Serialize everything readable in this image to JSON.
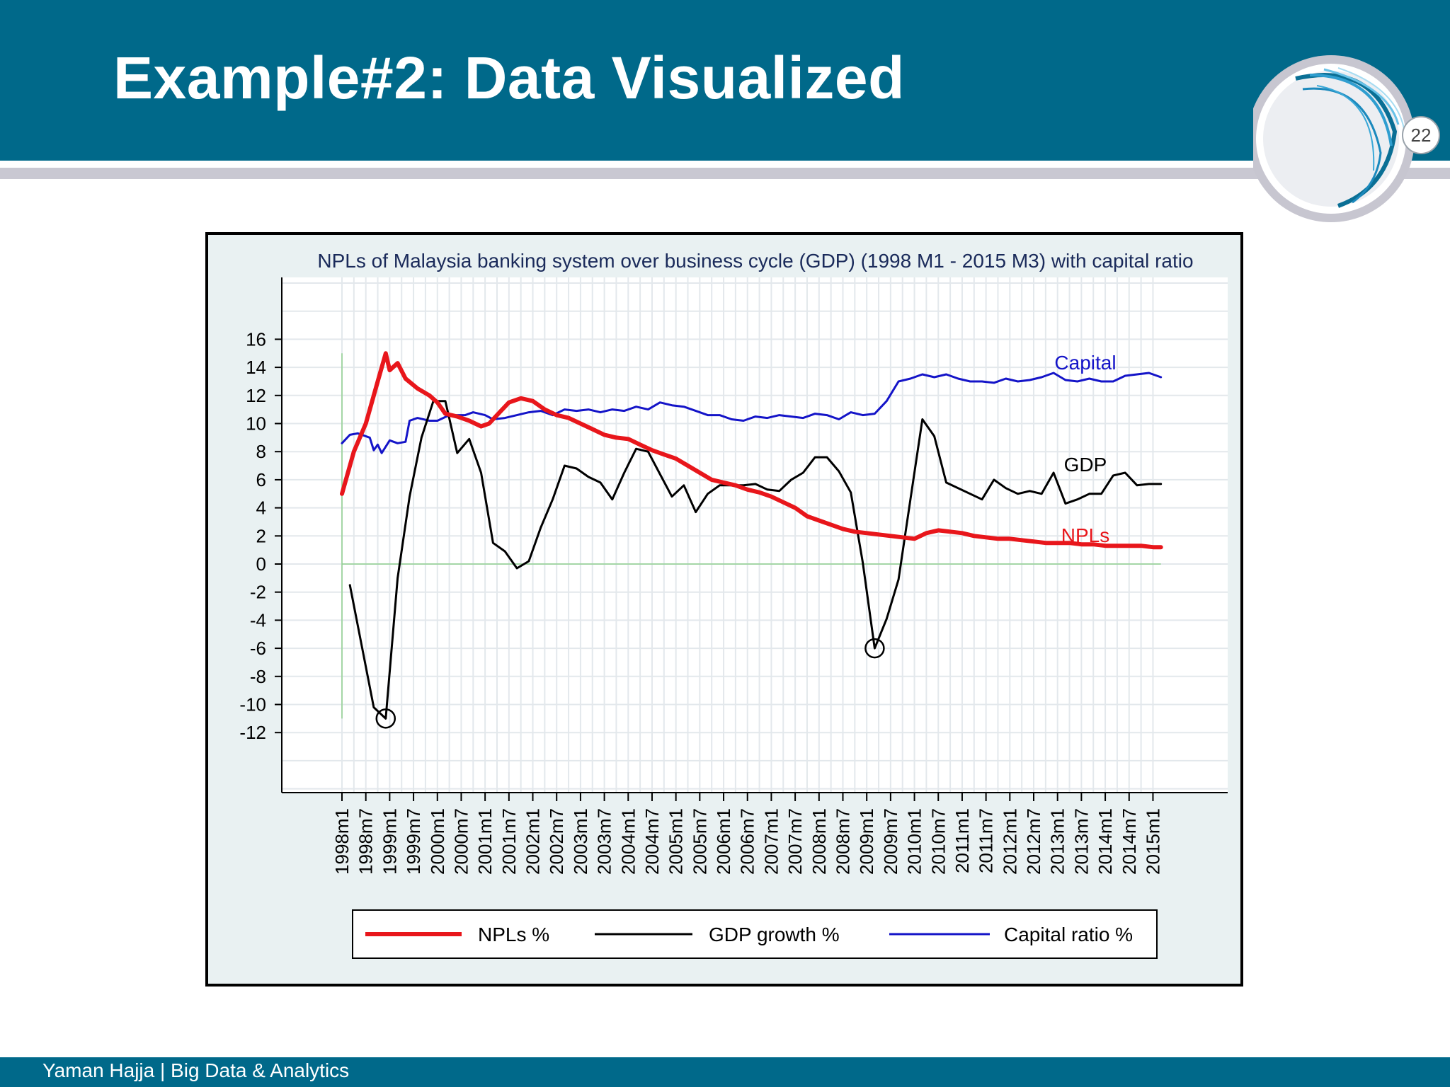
{
  "slide": {
    "title": "Example#2: Data Visualized",
    "page_number": "22",
    "footer": "Yaman Hajja | Big Data & Analytics"
  },
  "colors": {
    "header": "#00698a",
    "npl": "#e8161b",
    "gdp": "#000000",
    "capital": "#1414c8"
  },
  "chart_data": {
    "type": "line",
    "title": "NPLs of Malaysia banking system over business cycle (GDP) (1998 M1 - 2015 M3) with capital ratio",
    "xlabel": "",
    "ylabel": "",
    "ylim": [
      -12,
      16
    ],
    "x_range": [
      "1998m1",
      "2015m3"
    ],
    "y_ticks": [
      "16",
      "14",
      "12",
      "10",
      "8",
      "6",
      "4",
      "2",
      "0",
      "-2",
      "-4",
      "-6",
      "-8",
      "-10",
      "-12"
    ],
    "x_ticks": [
      "1998m1",
      "1998m7",
      "1999m1",
      "1999m7",
      "2000m1",
      "2000m7",
      "2001m1",
      "2001m7",
      "2002m1",
      "2002m7",
      "2003m1",
      "2003m7",
      "2004m1",
      "2004m7",
      "2005m1",
      "2005m7",
      "2006m1",
      "2006m7",
      "2007m1",
      "2007m7",
      "2008m1",
      "2008m7",
      "2009m1",
      "2009m7",
      "2010m1",
      "2010m7",
      "2011m1",
      "2011m7",
      "2012m1",
      "2012m7",
      "2013m1",
      "2013m7",
      "2014m1",
      "2014m7",
      "2015m1"
    ],
    "grid": true,
    "legend_position": "bottom",
    "series": [
      {
        "name": "NPLs %",
        "line_label": "NPLs",
        "color": "#e8161b",
        "points": [
          [
            "1998m1",
            5.0
          ],
          [
            "1998m4",
            8.0
          ],
          [
            "1998m7",
            10.0
          ],
          [
            "1998m10",
            13.0
          ],
          [
            "1998m12",
            15.0
          ],
          [
            "1999m1",
            13.8
          ],
          [
            "1999m3",
            14.3
          ],
          [
            "1999m5",
            13.2
          ],
          [
            "1999m8",
            12.5
          ],
          [
            "1999m11",
            12.0
          ],
          [
            "2000m1",
            11.5
          ],
          [
            "2000m3",
            10.7
          ],
          [
            "2000m6",
            10.5
          ],
          [
            "2000m9",
            10.2
          ],
          [
            "2000m12",
            9.8
          ],
          [
            "2001m2",
            10.0
          ],
          [
            "2001m5",
            10.9
          ],
          [
            "2001m7",
            11.5
          ],
          [
            "2001m10",
            11.8
          ],
          [
            "2002m1",
            11.6
          ],
          [
            "2002m4",
            11.0
          ],
          [
            "2002m7",
            10.6
          ],
          [
            "2002m10",
            10.4
          ],
          [
            "2003m1",
            10.0
          ],
          [
            "2003m4",
            9.6
          ],
          [
            "2003m7",
            9.2
          ],
          [
            "2003m10",
            9.0
          ],
          [
            "2004m1",
            8.9
          ],
          [
            "2004m4",
            8.5
          ],
          [
            "2004m7",
            8.1
          ],
          [
            "2004m10",
            7.8
          ],
          [
            "2005m1",
            7.5
          ],
          [
            "2005m4",
            7.0
          ],
          [
            "2005m7",
            6.5
          ],
          [
            "2005m10",
            6.0
          ],
          [
            "2006m1",
            5.8
          ],
          [
            "2006m4",
            5.6
          ],
          [
            "2006m7",
            5.3
          ],
          [
            "2006m10",
            5.1
          ],
          [
            "2007m1",
            4.8
          ],
          [
            "2007m4",
            4.4
          ],
          [
            "2007m7",
            4.0
          ],
          [
            "2007m10",
            3.4
          ],
          [
            "2008m1",
            3.1
          ],
          [
            "2008m4",
            2.8
          ],
          [
            "2008m7",
            2.5
          ],
          [
            "2008m10",
            2.3
          ],
          [
            "2009m1",
            2.2
          ],
          [
            "2009m4",
            2.1
          ],
          [
            "2009m7",
            2.0
          ],
          [
            "2009m10",
            1.9
          ],
          [
            "2010m1",
            1.8
          ],
          [
            "2010m4",
            2.2
          ],
          [
            "2010m7",
            2.4
          ],
          [
            "2010m10",
            2.3
          ],
          [
            "2011m1",
            2.2
          ],
          [
            "2011m4",
            2.0
          ],
          [
            "2011m7",
            1.9
          ],
          [
            "2011m10",
            1.8
          ],
          [
            "2012m1",
            1.8
          ],
          [
            "2012m4",
            1.7
          ],
          [
            "2012m7",
            1.6
          ],
          [
            "2012m10",
            1.5
          ],
          [
            "2013m1",
            1.5
          ],
          [
            "2013m4",
            1.5
          ],
          [
            "2013m7",
            1.4
          ],
          [
            "2013m10",
            1.4
          ],
          [
            "2014m1",
            1.3
          ],
          [
            "2014m4",
            1.3
          ],
          [
            "2014m7",
            1.3
          ],
          [
            "2014m10",
            1.3
          ],
          [
            "2015m1",
            1.2
          ],
          [
            "2015m3",
            1.2
          ]
        ]
      },
      {
        "name": "GDP growth %",
        "line_label": "GDP",
        "color": "#000000",
        "points": [
          [
            "1998m3",
            -1.5
          ],
          [
            "1998m9",
            -10.2
          ],
          [
            "1998m12",
            -11.0
          ],
          [
            "1999m3",
            -1.0
          ],
          [
            "1999m6",
            4.8
          ],
          [
            "1999m9",
            9.0
          ],
          [
            "1999m12",
            11.6
          ],
          [
            "2000m3",
            11.6
          ],
          [
            "2000m6",
            7.9
          ],
          [
            "2000m9",
            8.9
          ],
          [
            "2000m12",
            6.5
          ],
          [
            "2001m3",
            1.5
          ],
          [
            "2001m6",
            0.9
          ],
          [
            "2001m9",
            -0.3
          ],
          [
            "2001m12",
            0.2
          ],
          [
            "2002m3",
            2.6
          ],
          [
            "2002m6",
            4.6
          ],
          [
            "2002m9",
            7.0
          ],
          [
            "2002m12",
            6.8
          ],
          [
            "2003m3",
            6.2
          ],
          [
            "2003m6",
            5.8
          ],
          [
            "2003m9",
            4.6
          ],
          [
            "2003m12",
            6.5
          ],
          [
            "2004m3",
            8.2
          ],
          [
            "2004m6",
            8.0
          ],
          [
            "2004m9",
            6.4
          ],
          [
            "2004m12",
            4.8
          ],
          [
            "2005m3",
            5.6
          ],
          [
            "2005m6",
            3.7
          ],
          [
            "2005m9",
            5.0
          ],
          [
            "2005m12",
            5.6
          ],
          [
            "2006m6",
            5.6
          ],
          [
            "2006m9",
            5.7
          ],
          [
            "2006m12",
            5.3
          ],
          [
            "2007m3",
            5.2
          ],
          [
            "2007m6",
            6.0
          ],
          [
            "2007m9",
            6.5
          ],
          [
            "2007m12",
            7.6
          ],
          [
            "2008m3",
            7.6
          ],
          [
            "2008m6",
            6.6
          ],
          [
            "2008m9",
            5.1
          ],
          [
            "2008m12",
            0.1
          ],
          [
            "2009m3",
            -6.0
          ],
          [
            "2009m6",
            -3.9
          ],
          [
            "2009m9",
            -1.1
          ],
          [
            "2009m12",
            4.6
          ],
          [
            "2010m3",
            10.3
          ],
          [
            "2010m6",
            9.1
          ],
          [
            "2010m9",
            5.8
          ],
          [
            "2011m6",
            4.6
          ],
          [
            "2011m9",
            6.0
          ],
          [
            "2011m12",
            5.4
          ],
          [
            "2012m3",
            5.0
          ],
          [
            "2012m6",
            5.2
          ],
          [
            "2012m9",
            5.0
          ],
          [
            "2012m12",
            6.5
          ],
          [
            "2013m3",
            4.3
          ],
          [
            "2013m6",
            4.6
          ],
          [
            "2013m9",
            5.0
          ],
          [
            "2013m12",
            5.0
          ],
          [
            "2014m3",
            6.3
          ],
          [
            "2014m6",
            6.5
          ],
          [
            "2014m9",
            5.6
          ],
          [
            "2014m12",
            5.7
          ],
          [
            "2015m3",
            5.7
          ]
        ]
      },
      {
        "name": "Capital ratio %",
        "line_label": "Capital",
        "color": "#1414c8",
        "points": [
          [
            "1998m1",
            8.6
          ],
          [
            "1998m3",
            9.2
          ],
          [
            "1998m5",
            9.3
          ],
          [
            "1998m8",
            9.0
          ],
          [
            "1998m9",
            8.1
          ],
          [
            "1998m10",
            8.5
          ],
          [
            "1998m11",
            7.9
          ],
          [
            "1999m1",
            8.8
          ],
          [
            "1999m3",
            8.6
          ],
          [
            "1999m5",
            8.7
          ],
          [
            "1999m6",
            10.2
          ],
          [
            "1999m8",
            10.4
          ],
          [
            "1999m11",
            10.2
          ],
          [
            "2000m1",
            10.2
          ],
          [
            "2000m4",
            10.6
          ],
          [
            "2000m8",
            10.6
          ],
          [
            "2000m10",
            10.8
          ],
          [
            "2001m1",
            10.6
          ],
          [
            "2001m3",
            10.3
          ],
          [
            "2001m6",
            10.4
          ],
          [
            "2001m9",
            10.6
          ],
          [
            "2001m12",
            10.8
          ],
          [
            "2002m3",
            10.9
          ],
          [
            "2002m6",
            10.6
          ],
          [
            "2002m9",
            11.0
          ],
          [
            "2002m12",
            10.9
          ],
          [
            "2003m3",
            11.0
          ],
          [
            "2003m6",
            10.8
          ],
          [
            "2003m9",
            11.0
          ],
          [
            "2003m12",
            10.9
          ],
          [
            "2004m3",
            11.2
          ],
          [
            "2004m6",
            11.0
          ],
          [
            "2004m9",
            11.5
          ],
          [
            "2004m12",
            11.3
          ],
          [
            "2005m3",
            11.2
          ],
          [
            "2005m6",
            10.9
          ],
          [
            "2005m9",
            10.6
          ],
          [
            "2005m12",
            10.6
          ],
          [
            "2006m3",
            10.3
          ],
          [
            "2006m6",
            10.2
          ],
          [
            "2006m9",
            10.5
          ],
          [
            "2006m12",
            10.4
          ],
          [
            "2007m3",
            10.6
          ],
          [
            "2007m6",
            10.5
          ],
          [
            "2007m9",
            10.4
          ],
          [
            "2007m12",
            10.7
          ],
          [
            "2008m3",
            10.6
          ],
          [
            "2008m6",
            10.3
          ],
          [
            "2008m9",
            10.8
          ],
          [
            "2008m12",
            10.6
          ],
          [
            "2009m3",
            10.7
          ],
          [
            "2009m6",
            11.6
          ],
          [
            "2009m9",
            13.0
          ],
          [
            "2009m12",
            13.2
          ],
          [
            "2010m3",
            13.5
          ],
          [
            "2010m6",
            13.3
          ],
          [
            "2010m9",
            13.5
          ],
          [
            "2010m12",
            13.2
          ],
          [
            "2011m3",
            13.0
          ],
          [
            "2011m6",
            13.0
          ],
          [
            "2011m9",
            12.9
          ],
          [
            "2011m12",
            13.2
          ],
          [
            "2012m3",
            13.0
          ],
          [
            "2012m6",
            13.1
          ],
          [
            "2012m9",
            13.3
          ],
          [
            "2012m12",
            13.6
          ],
          [
            "2013m3",
            13.1
          ],
          [
            "2013m6",
            13.0
          ],
          [
            "2013m9",
            13.2
          ],
          [
            "2013m12",
            13.0
          ],
          [
            "2014m3",
            13.0
          ],
          [
            "2014m6",
            13.4
          ],
          [
            "2014m9",
            13.5
          ],
          [
            "2014m12",
            13.6
          ],
          [
            "2015m3",
            13.3
          ]
        ]
      }
    ],
    "markers": [
      [
        "1998m12",
        -11.0
      ],
      [
        "2009m3",
        -6.0
      ]
    ]
  }
}
